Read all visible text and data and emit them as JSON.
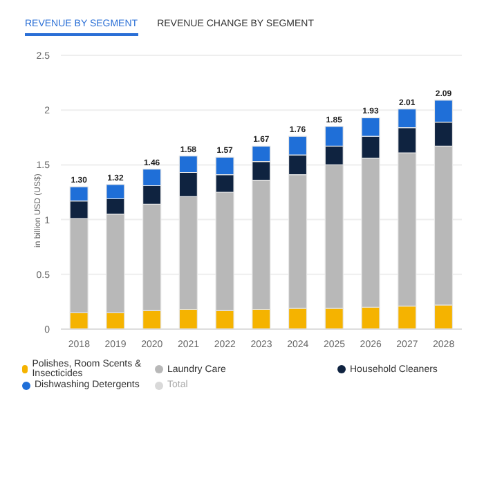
{
  "chart_data": {
    "type": "bar",
    "stacked": true,
    "annotations": [
      "REVENUE BY SEGMENT",
      "REVENUE CHANGE BY SEGMENT"
    ],
    "ylabel": "in billion USD (US$)",
    "categories": [
      "2018",
      "2019",
      "2020",
      "2021",
      "2022",
      "2023",
      "2024",
      "2025",
      "2026",
      "2027",
      "2028"
    ],
    "series": [
      {
        "name": "Polishes, Room Scents & Insecticides",
        "color": "#f5b300",
        "values": [
          0.15,
          0.15,
          0.17,
          0.18,
          0.17,
          0.18,
          0.19,
          0.19,
          0.2,
          0.21,
          0.22
        ]
      },
      {
        "name": "Laundry Care",
        "color": "#b8b8b8",
        "values": [
          0.86,
          0.9,
          0.97,
          1.03,
          1.08,
          1.18,
          1.22,
          1.31,
          1.36,
          1.4,
          1.45
        ]
      },
      {
        "name": "Household Cleaners",
        "color": "#0f2340",
        "values": [
          0.16,
          0.14,
          0.17,
          0.22,
          0.16,
          0.17,
          0.18,
          0.17,
          0.2,
          0.23,
          0.22
        ]
      },
      {
        "name": "Dishwashing Detergents",
        "color": "#1f6fd8",
        "values": [
          0.13,
          0.13,
          0.15,
          0.15,
          0.16,
          0.14,
          0.17,
          0.18,
          0.17,
          0.17,
          0.2
        ]
      },
      {
        "name": "Total",
        "color": "#d9d9d9",
        "values": [
          null,
          null,
          null,
          null,
          null,
          null,
          null,
          null,
          null,
          null,
          null
        ]
      }
    ],
    "totals": [
      "1.30",
      "1.32",
      "1.46",
      "1.58",
      "1.57",
      "1.67",
      "1.76",
      "1.85",
      "1.93",
      "2.01",
      "2.09"
    ],
    "ylim": [
      0,
      2.5
    ],
    "yticks": [
      0,
      0.5,
      1,
      1.5,
      2,
      2.5
    ],
    "grid": "y",
    "legend": "bottom"
  }
}
